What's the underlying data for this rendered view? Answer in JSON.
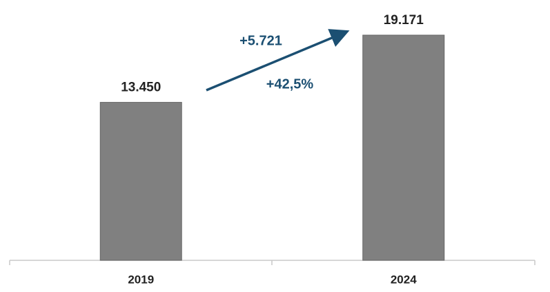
{
  "chart_data": {
    "type": "bar",
    "categories": [
      "2019",
      "2024"
    ],
    "values": [
      13450,
      19171
    ],
    "value_labels": [
      "13.450",
      "19.171"
    ],
    "color": "#808080",
    "annotations": [
      "+5.721",
      "+42,5%"
    ],
    "annotation_color": "#1b4f72"
  }
}
